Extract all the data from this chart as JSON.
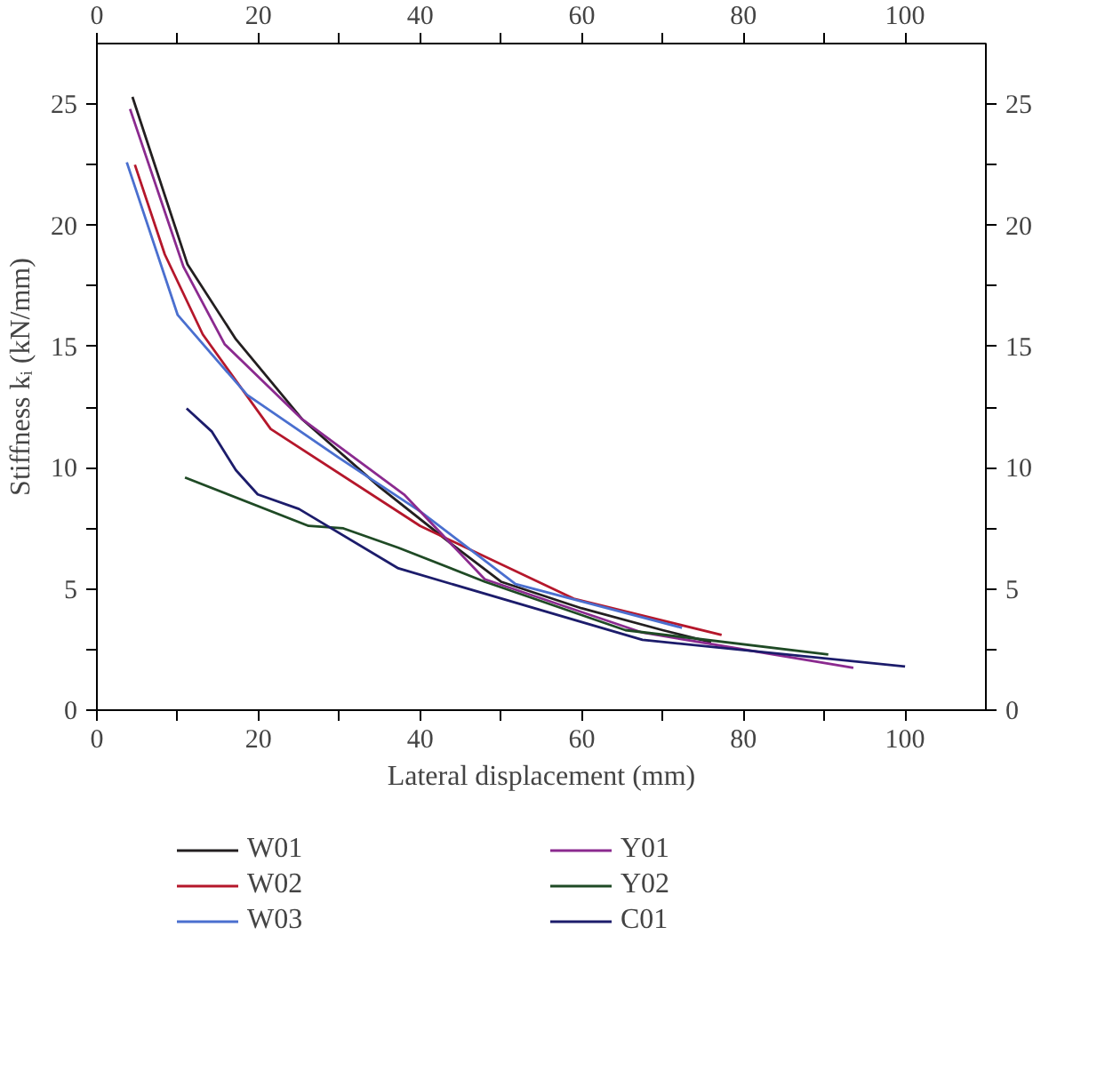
{
  "chart_data": {
    "type": "line",
    "xlabel": "Lateral displacement (mm)",
    "ylabel": "Stiffness kᵢ (kN/mm)",
    "xlim": [
      0,
      110
    ],
    "xticks": [
      0,
      {
        "value": 10,
        "label": null
      },
      20,
      {
        "value": 30,
        "label": null
      },
      40,
      {
        "value": 50,
        "label": null
      },
      60,
      {
        "value": 70,
        "label": null
      },
      80,
      {
        "value": 90,
        "label": null
      },
      100
    ],
    "x2lim": [
      0,
      110
    ],
    "x2ticks": [
      0,
      {
        "value": 10,
        "label": null
      },
      20,
      {
        "value": 30,
        "label": null
      },
      40,
      {
        "value": 50,
        "label": null
      },
      60,
      {
        "value": 70,
        "label": null
      },
      80,
      {
        "value": 90,
        "label": null
      },
      100
    ],
    "ylim": [
      0,
      27.5
    ],
    "yticks": [
      0,
      {
        "value": 2.5,
        "label": null
      },
      5,
      {
        "value": 7.5,
        "label": null
      },
      10,
      {
        "value": 12.5,
        "label": null
      },
      15,
      {
        "value": 17.5,
        "label": null
      },
      20,
      {
        "value": 22.5,
        "label": null
      },
      25
    ],
    "y2lim": [
      0,
      27.5
    ],
    "y2ticks": [
      0,
      {
        "value": 2.5,
        "label": null
      },
      5,
      {
        "value": 7.5,
        "label": null
      },
      10,
      {
        "value": 12.5,
        "label": null
      },
      15,
      {
        "value": 17.5,
        "label": null
      },
      20,
      {
        "value": 22.5,
        "label": null
      },
      25
    ],
    "grid": false,
    "legend": "bottom",
    "marker": "none",
    "line_style": "solid",
    "series": [
      {
        "name": "W01",
        "color": "#231f20",
        "x": [
          4.4,
          11.2,
          17.2,
          25.4,
          35,
          44.1,
          50,
          60,
          70,
          76
        ],
        "values": [
          25.3,
          18.4,
          15.3,
          12.0,
          9.2,
          6.8,
          5.3,
          4.2,
          3.3,
          2.8
        ]
      },
      {
        "name": "W02",
        "color": "#b5172b",
        "x": [
          4.7,
          8.4,
          13.1,
          21.5,
          40,
          59,
          77.3
        ],
        "values": [
          22.5,
          18.8,
          15.5,
          11.6,
          7.6,
          4.6,
          3.1
        ]
      },
      {
        "name": "W03",
        "color": "#4a6fcf",
        "x": [
          3.7,
          10,
          18.6,
          30,
          40,
          51.8,
          72.4
        ],
        "values": [
          22.6,
          16.3,
          13.0,
          10.4,
          8.2,
          5.2,
          3.4
        ]
      },
      {
        "name": "Y01",
        "color": "#8b2a8f",
        "x": [
          4.1,
          10.7,
          15.8,
          25.4,
          38,
          48,
          67.5,
          93.6
        ],
        "values": [
          24.8,
          18.3,
          15.1,
          12.0,
          8.9,
          5.4,
          3.2,
          1.75
        ]
      },
      {
        "name": "Y02",
        "color": "#1f4a25",
        "x": [
          10.9,
          26.2,
          30.5,
          37.3,
          48,
          65.4,
          90.5
        ],
        "values": [
          9.6,
          7.6,
          7.5,
          6.7,
          5.3,
          3.3,
          2.3
        ]
      },
      {
        "name": "C01",
        "color": "#1c1c6b",
        "x": [
          11.1,
          14.2,
          17.2,
          19.9,
          25,
          37.3,
          67.5,
          100
        ],
        "values": [
          12.45,
          11.5,
          9.9,
          8.9,
          8.3,
          5.85,
          2.9,
          1.8
        ]
      }
    ]
  }
}
